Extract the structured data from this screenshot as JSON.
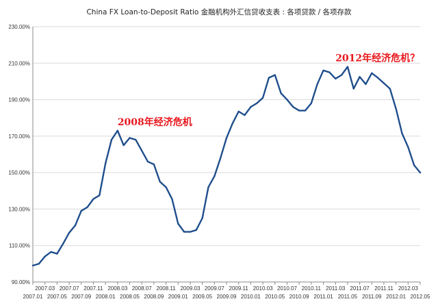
{
  "chart_data": {
    "type": "line",
    "title": "China FX Loan-to-Deposit Ratio   金融机构外汇信贷收支表 : 各项贷款 / 各项存款",
    "xlabel": "",
    "ylabel": "",
    "ylim": [
      90,
      230
    ],
    "y_ticks": [
      "90.00%",
      "110.00%",
      "130.00%",
      "150.00%",
      "170.00%",
      "190.00%",
      "210.00%",
      "230.00%"
    ],
    "x_ticks_upper": [
      "2007.03",
      "2007.07",
      "2007.11",
      "2008.03",
      "2008.07",
      "2008.11",
      "2009.03",
      "2009.07",
      "2009.11",
      "2010.03",
      "2010.07",
      "2010.11",
      "2011.03",
      "2011.07",
      "2011.11",
      "2012.03"
    ],
    "x_ticks_lower": [
      "2007.01",
      "2007.05",
      "2007.09",
      "2008.01",
      "2008.05",
      "2008.09",
      "2009.01",
      "2009.05",
      "2009.09",
      "2010.01",
      "2010.05",
      "2010.09",
      "2011.01",
      "2011.05",
      "2011.09",
      "2012.01",
      "2012.05"
    ],
    "grid": true,
    "legend": "none",
    "colors": {
      "line": "#1f4e8c",
      "grid": "#d9d9d9",
      "annotation": "#e8171c"
    },
    "series": [
      {
        "values": [
          {
            "x": "2007.01",
            "y": 99.0
          },
          {
            "x": "2007.02",
            "y": 100.0
          },
          {
            "x": "2007.03",
            "y": 104.0
          },
          {
            "x": "2007.04",
            "y": 106.5
          },
          {
            "x": "2007.05",
            "y": 105.5
          },
          {
            "x": "2007.06",
            "y": 111.0
          },
          {
            "x": "2007.07",
            "y": 117.0
          },
          {
            "x": "2007.08",
            "y": 121.0
          },
          {
            "x": "2007.09",
            "y": 129.0
          },
          {
            "x": "2007.10",
            "y": 131.0
          },
          {
            "x": "2007.11",
            "y": 135.5
          },
          {
            "x": "2007.12",
            "y": 137.5
          },
          {
            "x": "2008.01",
            "y": 155.0
          },
          {
            "x": "2008.02",
            "y": 168.0
          },
          {
            "x": "2008.03",
            "y": 173.0
          },
          {
            "x": "2008.04",
            "y": 165.0
          },
          {
            "x": "2008.05",
            "y": 169.0
          },
          {
            "x": "2008.06",
            "y": 168.0
          },
          {
            "x": "2008.07",
            "y": 162.0
          },
          {
            "x": "2008.08",
            "y": 156.0
          },
          {
            "x": "2008.09",
            "y": 154.5
          },
          {
            "x": "2008.10",
            "y": 145.0
          },
          {
            "x": "2008.11",
            "y": 142.0
          },
          {
            "x": "2008.12",
            "y": 135.5
          },
          {
            "x": "2009.01",
            "y": 122.0
          },
          {
            "x": "2009.02",
            "y": 117.5
          },
          {
            "x": "2009.03",
            "y": 117.5
          },
          {
            "x": "2009.04",
            "y": 118.5
          },
          {
            "x": "2009.05",
            "y": 125.0
          },
          {
            "x": "2009.06",
            "y": 142.0
          },
          {
            "x": "2009.07",
            "y": 148.0
          },
          {
            "x": "2009.08",
            "y": 158.0
          },
          {
            "x": "2009.09",
            "y": 169.0
          },
          {
            "x": "2009.10",
            "y": 177.0
          },
          {
            "x": "2009.11",
            "y": 183.5
          },
          {
            "x": "2009.12",
            "y": 181.5
          },
          {
            "x": "2010.01",
            "y": 186.0
          },
          {
            "x": "2010.02",
            "y": 188.0
          },
          {
            "x": "2010.03",
            "y": 191.0
          },
          {
            "x": "2010.04",
            "y": 202.0
          },
          {
            "x": "2010.05",
            "y": 203.5
          },
          {
            "x": "2010.06",
            "y": 193.5
          },
          {
            "x": "2010.07",
            "y": 190.0
          },
          {
            "x": "2010.08",
            "y": 186.0
          },
          {
            "x": "2010.09",
            "y": 184.0
          },
          {
            "x": "2010.10",
            "y": 184.0
          },
          {
            "x": "2010.11",
            "y": 188.0
          },
          {
            "x": "2010.12",
            "y": 198.5
          },
          {
            "x": "2011.01",
            "y": 206.0
          },
          {
            "x": "2011.02",
            "y": 205.0
          },
          {
            "x": "2011.03",
            "y": 201.5
          },
          {
            "x": "2011.04",
            "y": 203.5
          },
          {
            "x": "2011.05",
            "y": 208.0
          },
          {
            "x": "2011.06",
            "y": 196.0
          },
          {
            "x": "2011.07",
            "y": 202.5
          },
          {
            "x": "2011.08",
            "y": 198.5
          },
          {
            "x": "2011.09",
            "y": 204.5
          },
          {
            "x": "2011.10",
            "y": 202.0
          },
          {
            "x": "2011.11",
            "y": 199.0
          },
          {
            "x": "2011.12",
            "y": 196.0
          },
          {
            "x": "2012.01",
            "y": 185.0
          },
          {
            "x": "2012.02",
            "y": 171.5
          },
          {
            "x": "2012.03",
            "y": 164.0
          },
          {
            "x": "2012.04",
            "y": 154.0
          },
          {
            "x": "2012.05",
            "y": 150.0
          }
        ]
      }
    ],
    "annotations": [
      {
        "text": "2008年经济危机",
        "x": "2008.03",
        "y": 176
      },
      {
        "text": "2012年经济危机？",
        "x": "2011.03",
        "y": 211
      }
    ]
  }
}
